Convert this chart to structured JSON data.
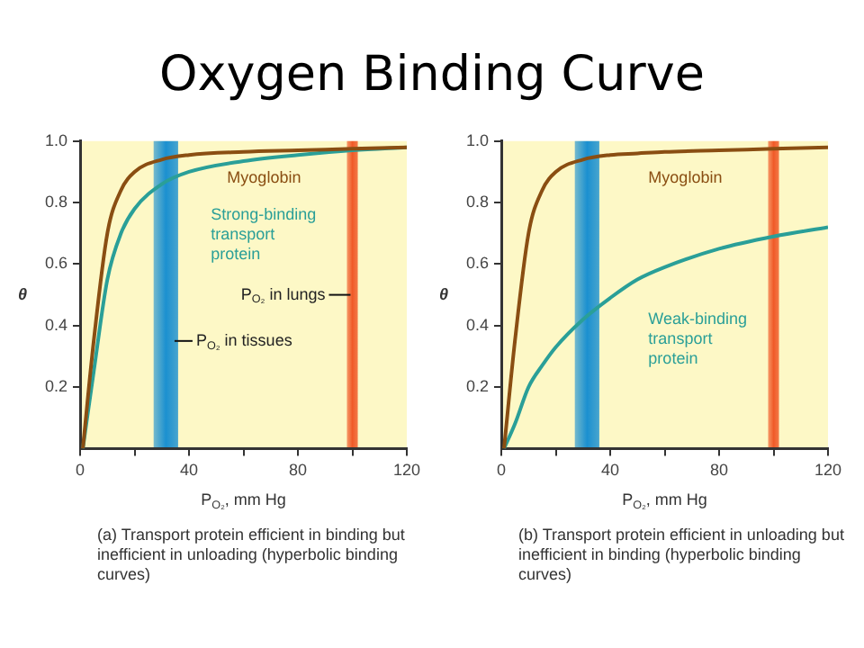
{
  "chart_data": [
    {
      "type": "line",
      "title": "Oxygen Binding Curve",
      "xlabel": "P$_{O₂}$, mm Hg",
      "ylabel": "θ",
      "x": [
        1,
        5,
        10,
        15,
        20,
        30,
        40,
        60,
        80,
        100,
        120
      ],
      "series": [
        {
          "name": "Myoglobin",
          "color": "#8a4e12",
          "values": [
            0,
            0.35,
            0.7,
            0.84,
            0.9,
            0.94,
            0.955,
            0.965,
            0.97,
            0.975,
            0.98
          ]
        },
        {
          "name": "Strong-binding transport protein",
          "color": "#2a9f98",
          "values": [
            0,
            0.25,
            0.55,
            0.7,
            0.78,
            0.86,
            0.9,
            0.935,
            0.955,
            0.97,
            0.98
          ]
        }
      ],
      "xlim": [
        0,
        120
      ],
      "xticks": [
        0,
        {
          "value": 20,
          "label": null
        },
        40,
        {
          "value": 60,
          "label": null
        },
        80,
        {
          "value": 100,
          "label": null
        },
        120
      ],
      "ylim": [
        0,
        1
      ],
      "yticks": [
        0.2,
        0.4,
        0.6,
        0.8,
        {
          "value": 1,
          "label": "1.0"
        }
      ],
      "bands": [
        {
          "axis": "x",
          "from": 27,
          "to": 36,
          "label": "P$_{O₂}$ in tissues",
          "color": "#1b90d0"
        },
        {
          "axis": "x",
          "from": 98,
          "to": 102,
          "label": "P$_{O₂}$ in lungs",
          "color": "#f05a28"
        }
      ],
      "annotations": [
        "(a) Transport protein efficient in binding but inefficient in unloading (hyperbolic binding curves)"
      ],
      "legend": false,
      "grid": false,
      "marker": "none",
      "line_style": "solid"
    },
    {
      "type": "line",
      "xlabel": "P$_{O₂}$, mm Hg",
      "ylabel": "θ",
      "x": [
        1,
        5,
        10,
        15,
        20,
        30,
        40,
        50,
        60,
        80,
        100,
        120
      ],
      "series": [
        {
          "name": "Myoglobin",
          "color": "#8a4e12",
          "values": [
            0,
            0.35,
            0.7,
            0.84,
            0.9,
            0.94,
            0.955,
            0.96,
            0.965,
            0.97,
            0.975,
            0.98
          ]
        },
        {
          "name": "Weak-binding transport protein",
          "color": "#2a9f98",
          "values": [
            0,
            0.08,
            0.2,
            0.27,
            0.33,
            0.42,
            0.49,
            0.55,
            0.59,
            0.65,
            0.69,
            0.72
          ]
        }
      ],
      "xlim": [
        0,
        120
      ],
      "xticks": [
        0,
        {
          "value": 20,
          "label": null
        },
        40,
        {
          "value": 60,
          "label": null
        },
        80,
        {
          "value": 100,
          "label": null
        },
        120
      ],
      "ylim": [
        0,
        1
      ],
      "yticks": [
        0.2,
        0.4,
        0.6,
        0.8,
        {
          "value": 1,
          "label": "1.0"
        }
      ],
      "bands": [
        {
          "axis": "x",
          "from": 27,
          "to": 36,
          "color": "#1b90d0"
        },
        {
          "axis": "x",
          "from": 98,
          "to": 102,
          "color": "#f05a28"
        }
      ],
      "annotations": [
        "(b) Transport protein efficient in unloading but inefficient in binding (hyperbolic binding curves)"
      ],
      "legend": false,
      "grid": false,
      "marker": "none",
      "line_style": "solid"
    }
  ]
}
